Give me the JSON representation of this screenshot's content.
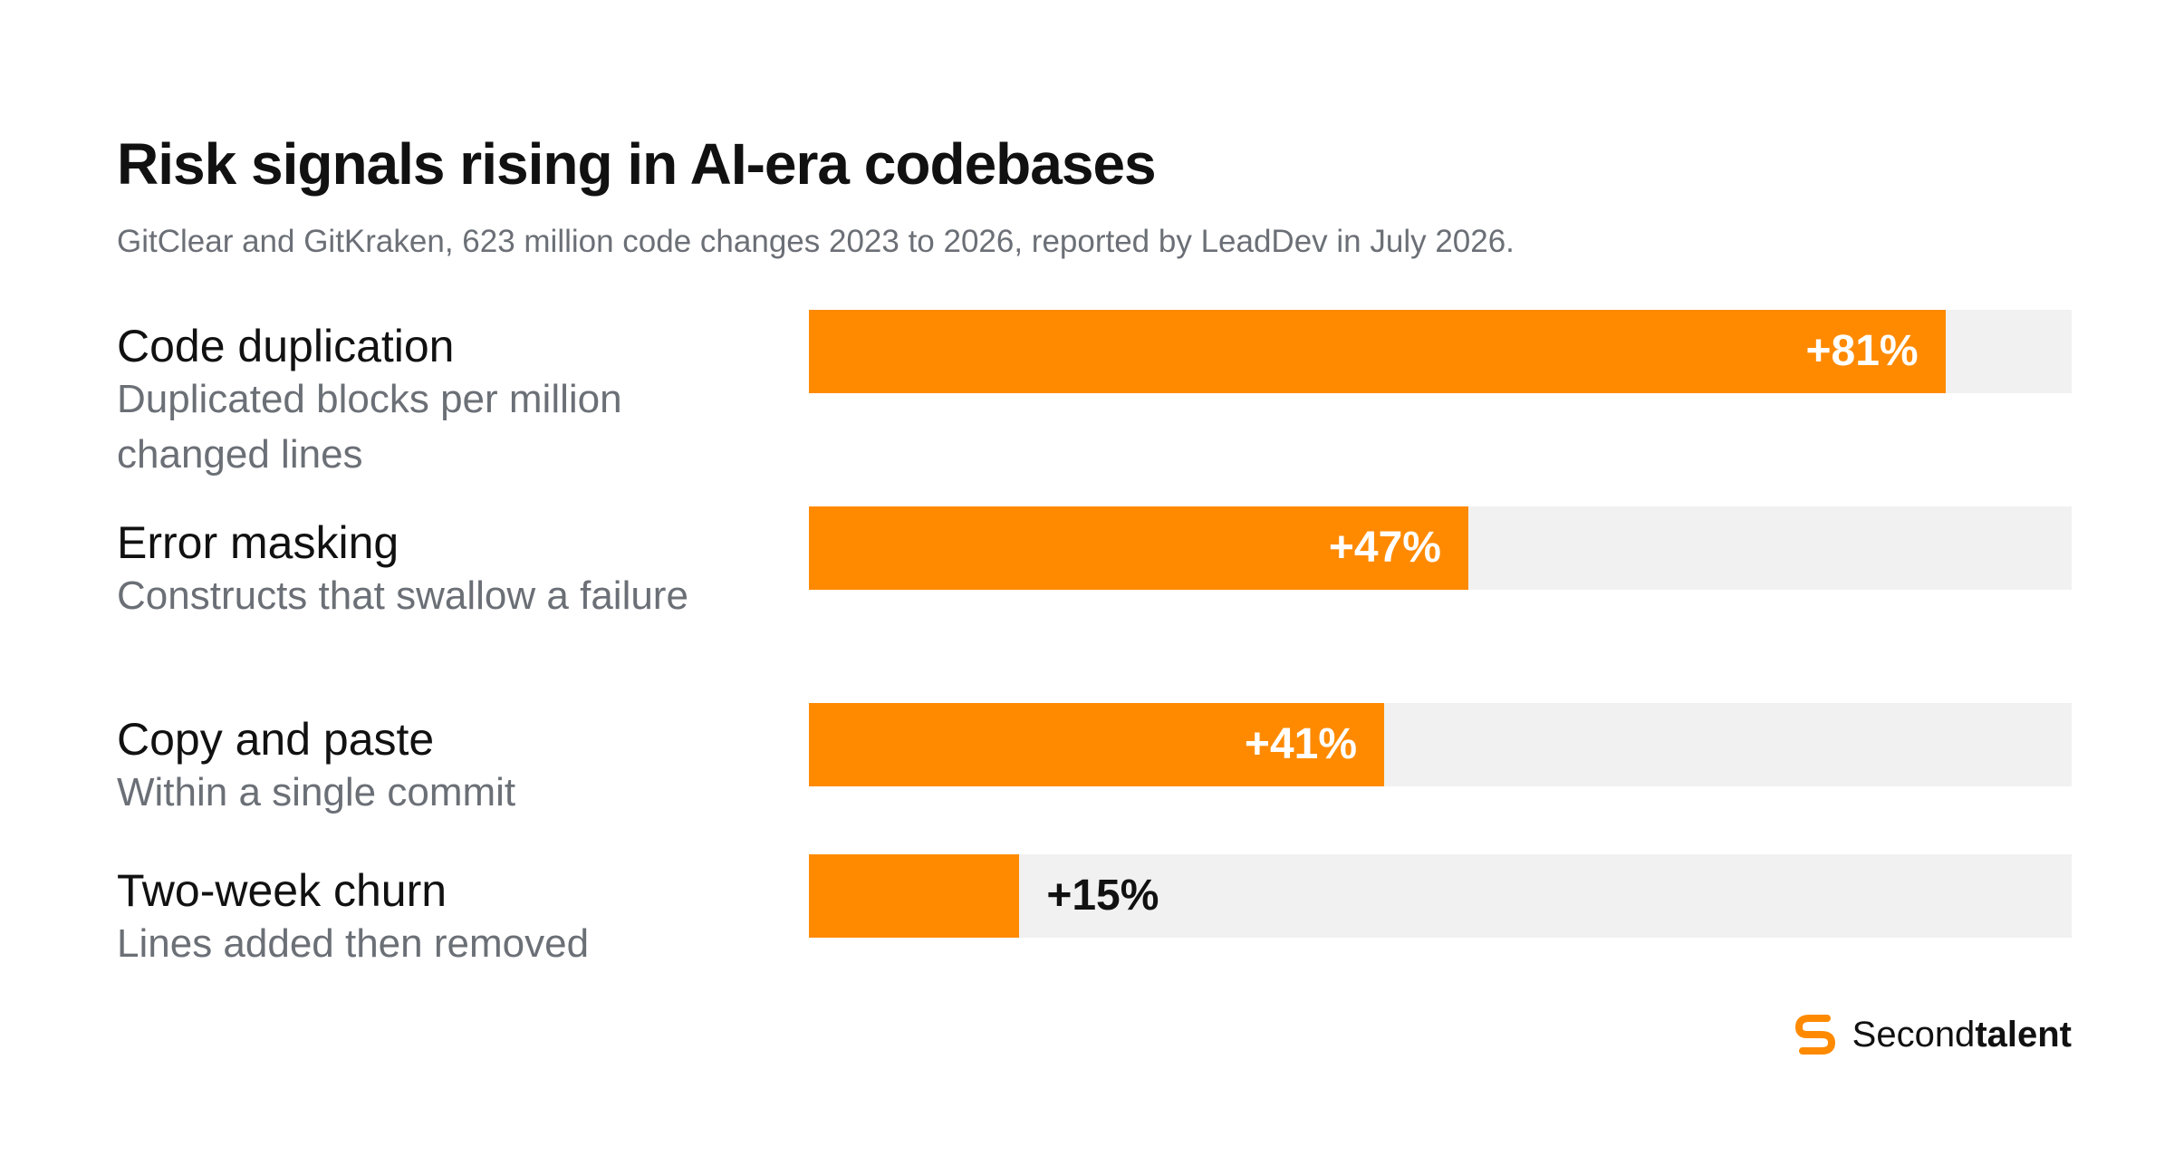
{
  "header": {
    "title": "Risk signals rising in AI-era codebases",
    "subtitle": "GitClear and GitKraken, 623 million code changes 2023 to 2026, reported by LeadDev in July 2026."
  },
  "chart_data": {
    "type": "bar",
    "orientation": "horizontal",
    "title": "Risk signals rising in AI-era codebases",
    "subtitle": "GitClear and GitKraken, 623 million code changes 2023 to 2026, reported by LeadDev in July 2026.",
    "categories": [
      "Code duplication",
      "Error masking",
      "Copy and paste",
      "Two-week churn"
    ],
    "descriptions": [
      "Duplicated blocks per million changed lines",
      "Constructs that swallow a failure",
      "Within a single commit",
      "Lines added then removed"
    ],
    "values": [
      81,
      47,
      41,
      15
    ],
    "value_labels": [
      "+81%",
      "+47%",
      "+41%",
      "+15%"
    ],
    "unit": "%",
    "xlim": [
      0,
      90
    ],
    "grid": false,
    "legend": "none",
    "colors": {
      "bar": "#ff8a00",
      "track": "#f0f1f0",
      "label_inside": "#ffffff",
      "label_outside": "#111111"
    }
  },
  "brand": {
    "icon": "secondtalent-logo-icon",
    "name_regular": "Second",
    "name_bold": "talent",
    "color": "#ff8a00"
  }
}
